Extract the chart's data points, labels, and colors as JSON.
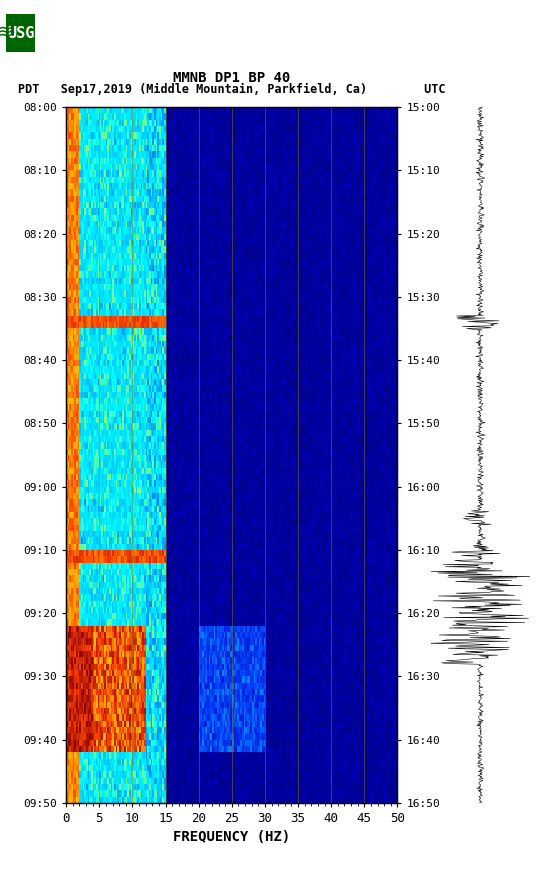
{
  "title_line1": "MMNB DP1 BP 40",
  "title_line2": "PDT   Sep17,2019 (Middle Mountain, Parkfield, Ca)        UTC",
  "xlabel": "FREQUENCY (HZ)",
  "freq_min": 0,
  "freq_max": 50,
  "freq_ticks": [
    0,
    5,
    10,
    15,
    20,
    25,
    30,
    35,
    40,
    45,
    50
  ],
  "time_start_left": "08:00",
  "time_end_left": "09:50",
  "time_start_right": "15:00",
  "time_end_right": "16:50",
  "left_time_ticks": [
    "08:00",
    "08:10",
    "08:20",
    "08:30",
    "08:40",
    "08:50",
    "09:00",
    "09:10",
    "09:20",
    "09:30",
    "09:40",
    "09:50"
  ],
  "right_time_ticks": [
    "15:00",
    "15:10",
    "15:20",
    "15:30",
    "15:40",
    "15:50",
    "16:00",
    "16:10",
    "16:20",
    "16:30",
    "16:40",
    "16:50"
  ],
  "bg_color": "white",
  "spectrogram_bg": "#00008B",
  "grid_color": "#8B8000",
  "vertical_grid_freqs": [
    5,
    10,
    15,
    20,
    25,
    30,
    35,
    40,
    45
  ]
}
